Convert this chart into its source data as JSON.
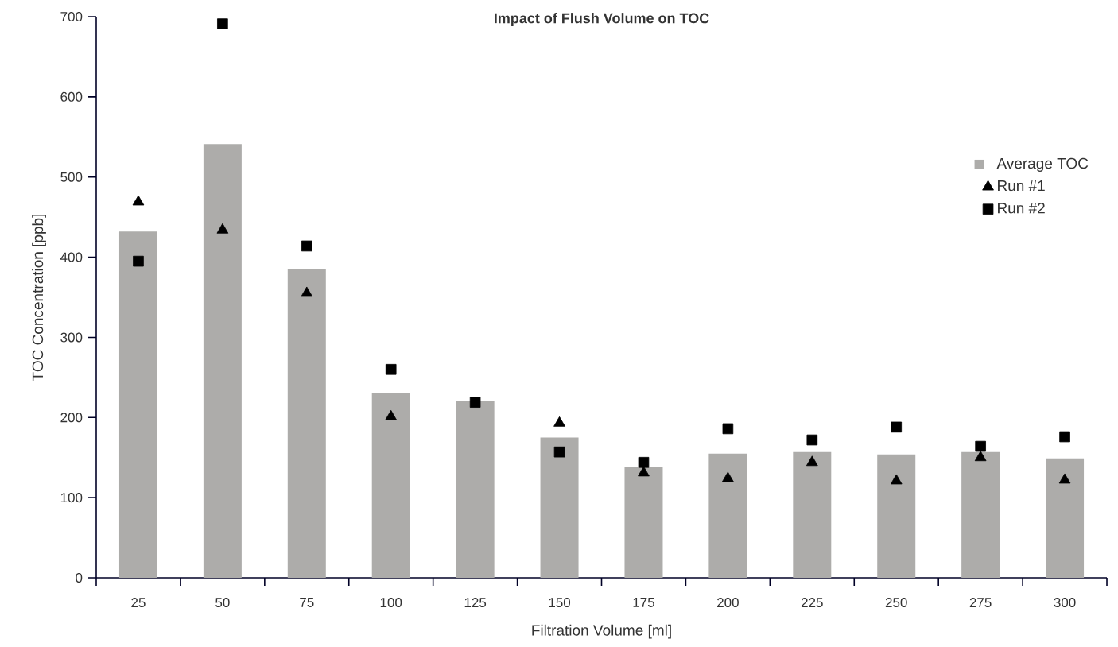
{
  "chart_data": {
    "type": "bar",
    "title": "Impact of Flush Volume on TOC",
    "xlabel": "Filtration Volume [ml]",
    "ylabel": "TOC Concentration [ppb]",
    "categories": [
      "25",
      "50",
      "75",
      "100",
      "125",
      "150",
      "175",
      "200",
      "225",
      "250",
      "275",
      "300"
    ],
    "series": [
      {
        "name": "Average TOC",
        "color": "#adacaa",
        "values": [
          432,
          541,
          385,
          231,
          220,
          175,
          138,
          155,
          157,
          154,
          157,
          149
        ]
      },
      {
        "name": "Run #1",
        "type": "scatter",
        "marker": "triangle",
        "color": "#000000",
        "x": [
          "25",
          "50",
          "75",
          "100",
          "125",
          "150",
          "175",
          "200",
          "225",
          "250",
          "275",
          "300"
        ],
        "values": [
          469,
          434,
          355,
          201,
          null,
          193,
          131,
          124,
          144,
          121,
          150,
          122
        ]
      },
      {
        "name": "Run #2",
        "type": "scatter",
        "marker": "square",
        "color": "#000000",
        "x": [
          "25",
          "50",
          "75",
          "100",
          "125",
          "150",
          "175",
          "200",
          "225",
          "250",
          "275",
          "300"
        ],
        "values": [
          395,
          691,
          414,
          260,
          219,
          157,
          144,
          186,
          172,
          188,
          164,
          176
        ]
      }
    ],
    "ylim": [
      0,
      700
    ],
    "yticks": [
      0,
      100,
      200,
      300,
      400,
      500,
      600,
      700
    ],
    "legend": "right",
    "grid": false
  }
}
